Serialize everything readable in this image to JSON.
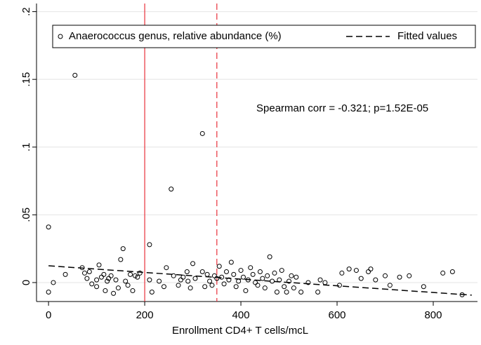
{
  "chart_data": {
    "type": "scatter",
    "xlabel": "Enrollment CD4+ T cells/mcL",
    "annotation": "Spearman corr =  -0.321; p=1.52E-05",
    "xlim": [
      -25,
      892
    ],
    "ylim": [
      -0.014,
      0.206
    ],
    "xticks": [
      0,
      200,
      400,
      600,
      800
    ],
    "yticks": [
      0,
      {
        "value": 0.05,
        "label": ".05"
      },
      {
        "value": 0.1,
        "label": ".1"
      },
      {
        "value": 0.15,
        "label": ".15"
      },
      {
        "value": 0.2,
        "label": ".2"
      }
    ],
    "grid": true,
    "legend": "top",
    "reference_lines": [
      {
        "x": 200,
        "color": "#e8303a",
        "style": "solid"
      },
      {
        "x": 350,
        "color": "#e8303a",
        "style": "dashed"
      }
    ],
    "series": [
      {
        "name": "Anaerococcus genus, relative abundance (%)",
        "type": "scatter",
        "color": "#000000",
        "x": [
          0,
          0,
          10,
          35,
          55,
          70,
          75,
          80,
          85,
          90,
          100,
          100,
          105,
          110,
          115,
          118,
          122,
          125,
          130,
          135,
          140,
          145,
          150,
          155,
          160,
          165,
          170,
          175,
          180,
          185,
          190,
          210,
          210,
          215,
          230,
          240,
          245,
          255,
          260,
          270,
          275,
          280,
          288,
          290,
          295,
          300,
          305,
          320,
          320,
          325,
          330,
          335,
          340,
          345,
          350,
          355,
          360,
          365,
          370,
          375,
          380,
          385,
          390,
          395,
          400,
          405,
          410,
          415,
          420,
          425,
          430,
          435,
          440,
          445,
          450,
          455,
          460,
          465,
          470,
          475,
          480,
          485,
          490,
          495,
          500,
          505,
          510,
          515,
          525,
          540,
          560,
          565,
          575,
          605,
          610,
          625,
          640,
          650,
          665,
          670,
          680,
          700,
          710,
          730,
          750,
          780,
          820,
          840,
          860
        ],
        "values": [
          -0.007,
          0.041,
          0,
          0.006,
          0.153,
          0.011,
          0.007,
          0.003,
          0.008,
          -0.001,
          0.002,
          -0.003,
          0.013,
          0.004,
          0.006,
          -0.006,
          0.001,
          0.003,
          0.005,
          -0.008,
          0.002,
          -0.004,
          0.017,
          0.025,
          0.001,
          -0.002,
          0.006,
          -0.006,
          0.005,
          0.004,
          0.007,
          0.028,
          0.002,
          -0.007,
          0.001,
          -0.003,
          0.011,
          0.069,
          0.005,
          -0.002,
          0.002,
          0.004,
          0.008,
          0.001,
          -0.004,
          0.014,
          0.003,
          0.11,
          0.008,
          -0.003,
          0.006,
          0.001,
          -0.002,
          0.005,
          0.003,
          0.012,
          0.004,
          -0.001,
          0.008,
          0.002,
          0.015,
          0.006,
          -0.003,
          0.001,
          0.009,
          0.004,
          -0.006,
          0.002,
          0.011,
          0.006,
          0,
          -0.002,
          0.008,
          0.003,
          -0.004,
          0.005,
          0.019,
          0.001,
          0.007,
          -0.007,
          0.002,
          0.009,
          -0.003,
          -0.007,
          0.001,
          0.005,
          -0.004,
          0.004,
          -0.007,
          0,
          -0.007,
          0.002,
          0,
          -0.002,
          0.007,
          0.01,
          0.009,
          0.003,
          0.008,
          0.01,
          0.002,
          0.005,
          -0.002,
          0.004,
          0.005,
          -0.003,
          0.007,
          0.008,
          -0.009
        ]
      },
      {
        "name": "Fitted values",
        "type": "line",
        "style": "dashed",
        "color": "#000000",
        "x": [
          0,
          880
        ],
        "values": [
          0.0124,
          -0.0093
        ]
      }
    ]
  }
}
